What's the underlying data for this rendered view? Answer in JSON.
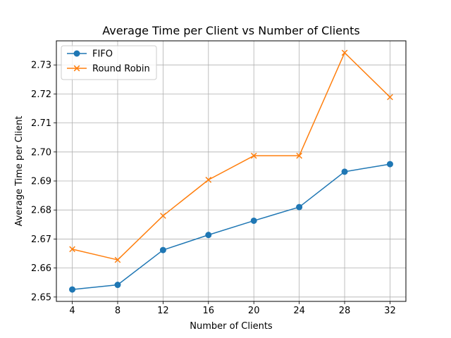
{
  "chart_data": {
    "type": "line",
    "title": "Average Time per Client vs Number of Clients",
    "xlabel": "Number of Clients",
    "ylabel": "Average Time per Client",
    "x": [
      4,
      8,
      12,
      16,
      20,
      24,
      28,
      32
    ],
    "xticks": [
      "4",
      "8",
      "12",
      "16",
      "20",
      "24",
      "28",
      "32"
    ],
    "yticks": [
      2.65,
      2.66,
      2.67,
      2.68,
      2.69,
      2.7,
      2.71,
      2.72,
      2.73
    ],
    "ytick_labels": [
      "2.65",
      "2.66",
      "2.67",
      "2.68",
      "2.69",
      "2.70",
      "2.71",
      "2.72",
      "2.73"
    ],
    "xlim": [
      2.6,
      33.4
    ],
    "ylim": [
      2.6485,
      2.7383
    ],
    "grid": true,
    "legend_position": "top-left",
    "series": [
      {
        "name": "FIFO",
        "color": "#1f77b4",
        "marker": "circle",
        "values": [
          2.6526,
          2.6542,
          2.6662,
          2.6714,
          2.6763,
          2.681,
          2.6932,
          2.6958
        ]
      },
      {
        "name": "Round Robin",
        "color": "#ff7f0e",
        "marker": "x",
        "values": [
          2.6665,
          2.6628,
          2.678,
          2.6904,
          2.6987,
          2.6987,
          2.7342,
          2.7189
        ]
      }
    ]
  }
}
